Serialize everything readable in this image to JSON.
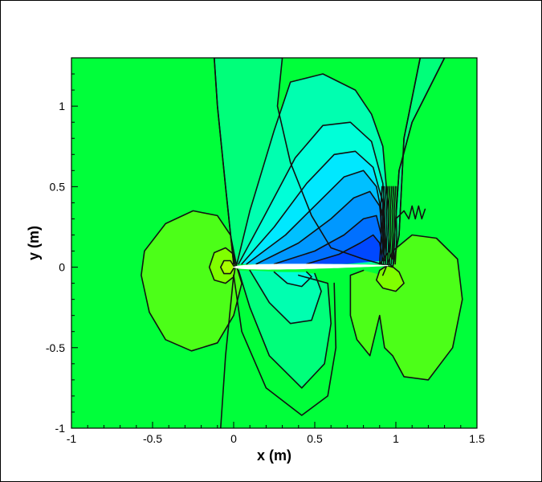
{
  "chart_data": {
    "type": "contour",
    "xlabel": "x (m)",
    "ylabel": "y (m)",
    "xlim": [
      -1,
      1.5
    ],
    "ylim": [
      -1,
      1.3
    ],
    "x_ticks": [
      -1,
      -0.5,
      0,
      0.5,
      1,
      1.5
    ],
    "y_ticks": [
      -1,
      -0.5,
      0,
      0.5,
      1
    ],
    "x_tick_labels": [
      "-1",
      "-0.5",
      "0",
      "0.5",
      "1",
      "1.5"
    ],
    "y_tick_labels": [
      "-1",
      "-0.5",
      "0",
      "0.5",
      "1"
    ],
    "airfoil": {
      "leading_edge": [
        0,
        0
      ],
      "trailing_edge": [
        0.95,
        0
      ],
      "max_thickness_at": 0.55,
      "thickness": 0.06
    },
    "background_color": "#00ff3a",
    "colors": {
      "far_field": "#00ff3a",
      "low_pressure_1": "#00ff7a",
      "low_pressure_2": "#00ffb0",
      "low_pressure_3": "#00ffd8",
      "low_pressure_4": "#00e8ff",
      "low_pressure_5": "#00c0ff",
      "low_pressure_6": "#0098ff",
      "low_pressure_7": "#0070ff",
      "low_pressure_8": "#0048ff",
      "high_pressure_1": "#4cff18",
      "high_pressure_2": "#80ff00",
      "high_pressure_3": "#a8ff00",
      "high_pressure_4": "#ccff00",
      "airfoil": "#ffffff",
      "contour_line": "#111111"
    },
    "grid": false,
    "legend": "none"
  }
}
